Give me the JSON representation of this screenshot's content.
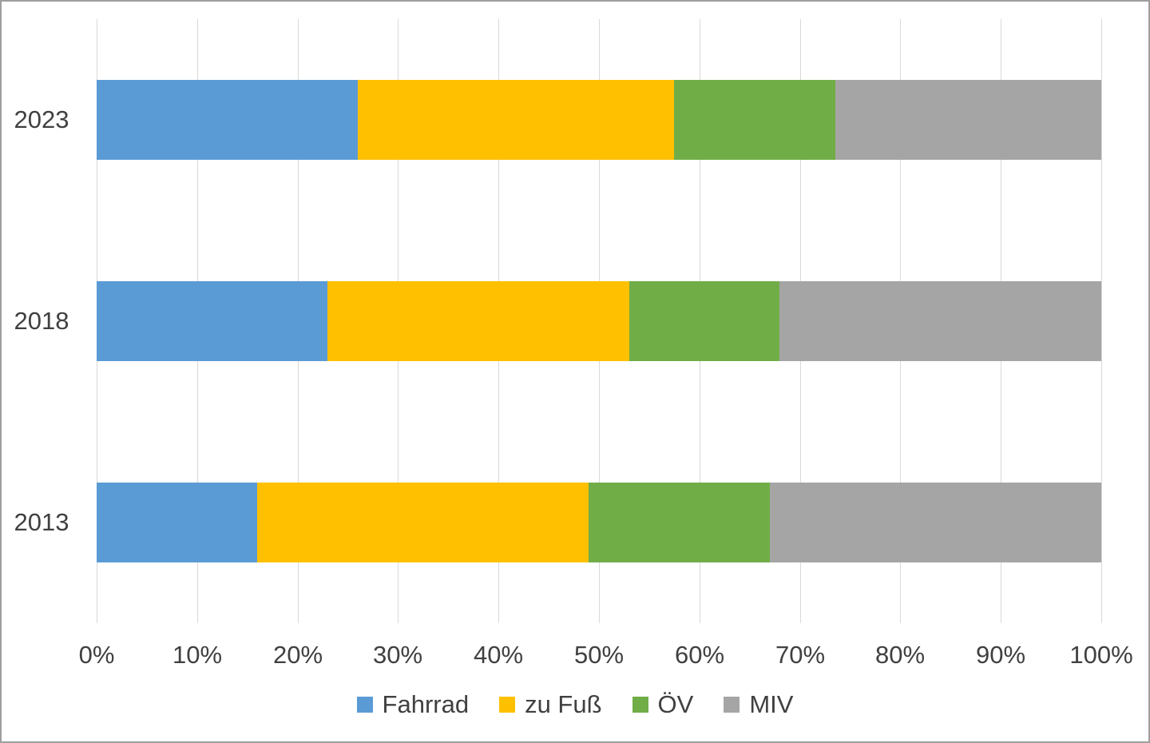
{
  "chart_data": {
    "type": "bar",
    "orientation": "horizontal",
    "stacked": true,
    "unit": "%",
    "categories": [
      "2023",
      "2018",
      "2013"
    ],
    "series": [
      {
        "name": "Fahrrad",
        "color": "#5B9BD5",
        "values": [
          26,
          23,
          16
        ]
      },
      {
        "name": "zu Fuß",
        "color": "#FFC000",
        "values": [
          31.5,
          30,
          33
        ]
      },
      {
        "name": "ÖV",
        "color": "#70AD47",
        "values": [
          16,
          15,
          18
        ]
      },
      {
        "name": "MIV",
        "color": "#A5A5A5",
        "values": [
          26.5,
          32,
          33
        ]
      }
    ],
    "x_ticks": [
      "0%",
      "10%",
      "20%",
      "30%",
      "40%",
      "50%",
      "60%",
      "70%",
      "80%",
      "90%",
      "100%"
    ],
    "xlim": [
      0,
      100
    ],
    "grid": true,
    "legend_position": "bottom"
  },
  "colors": {
    "gridline": "#D9D9D9",
    "axis_text": "#404040",
    "frame_border": "#9E9E9E",
    "background": "#FFFFFF"
  }
}
